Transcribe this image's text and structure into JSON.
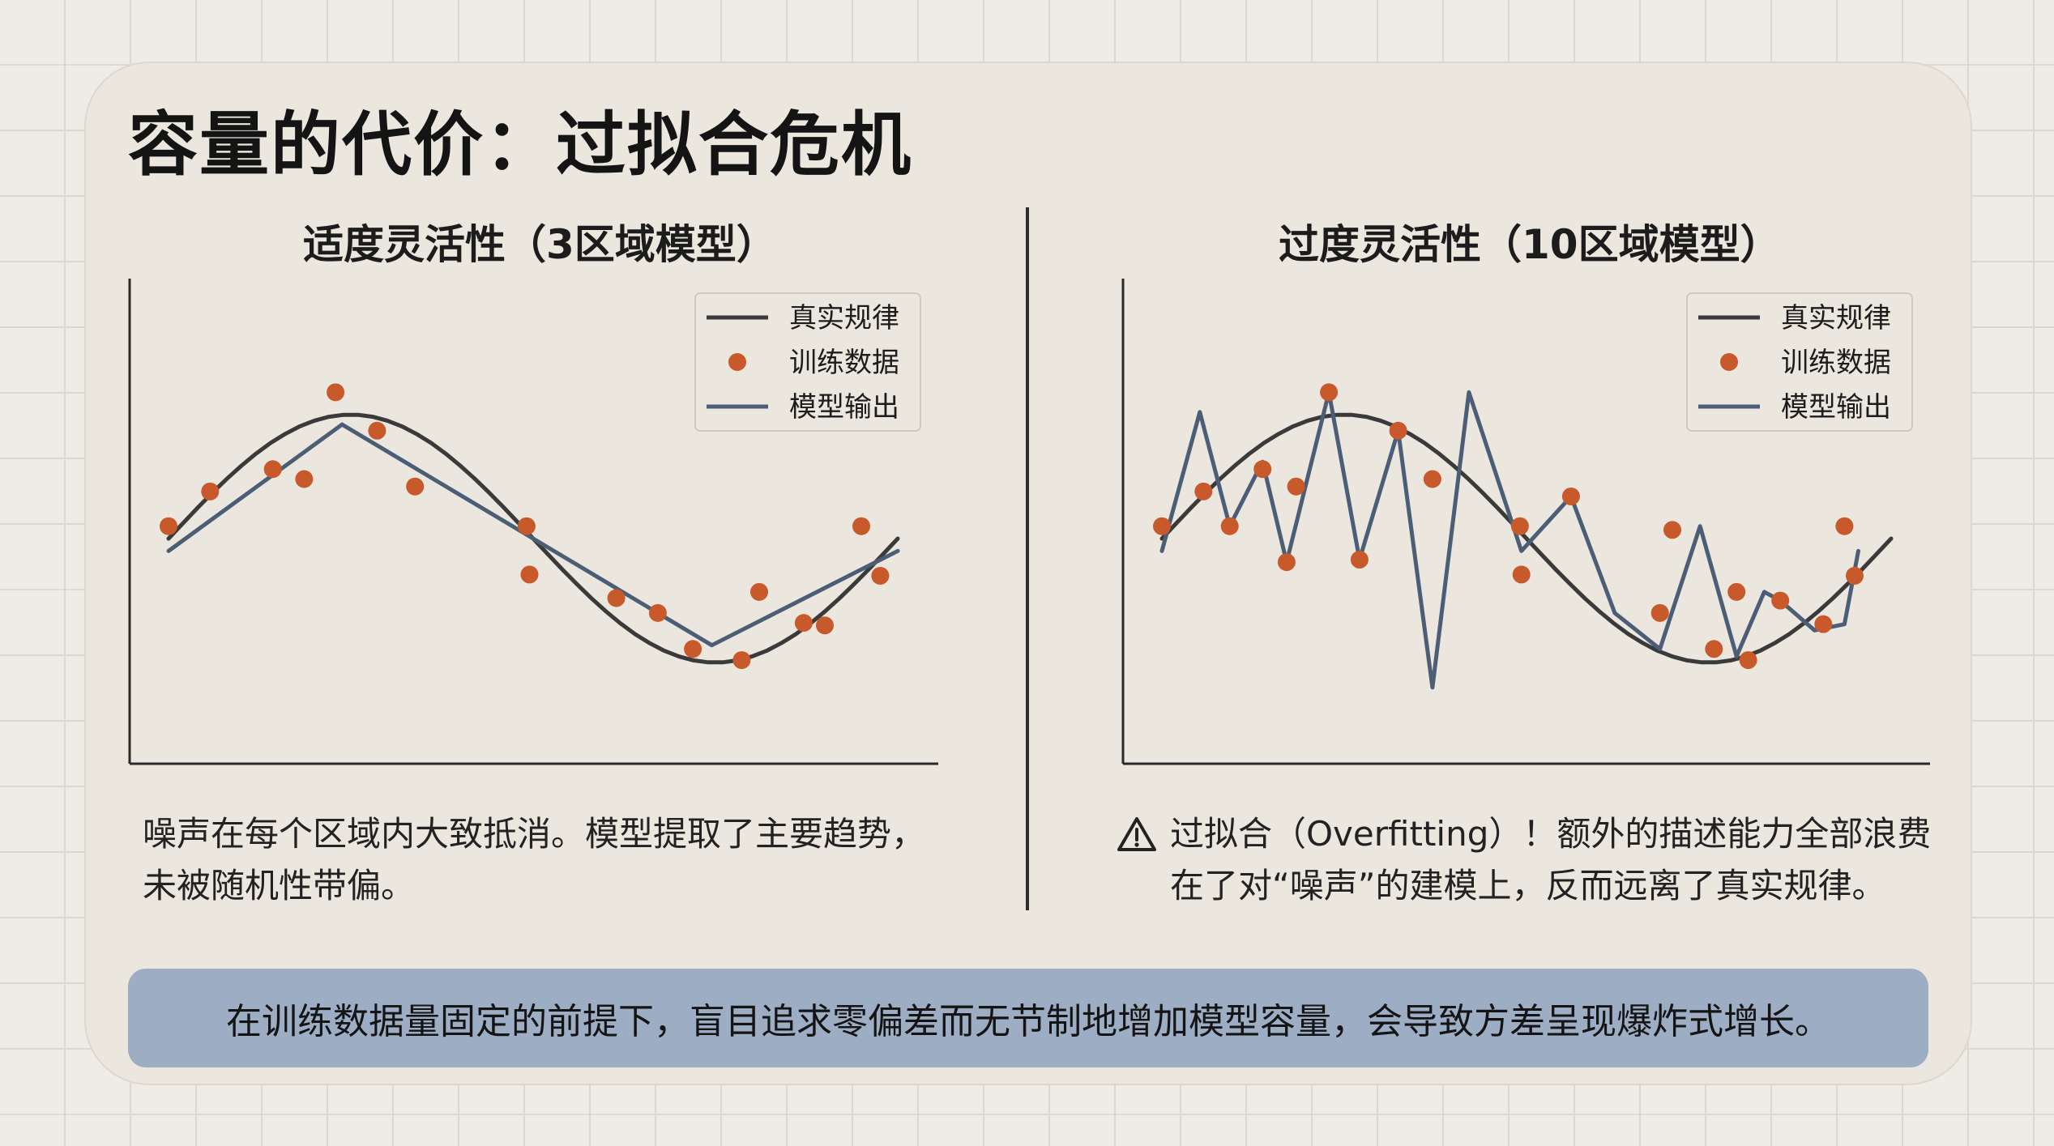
{
  "title": "容量的代价：过拟合危机",
  "colors": {
    "truth_line": "#3a3a3a",
    "data_points": "#c7592b",
    "model_line": "#4c5e76",
    "banner_bg": "#9cadc4"
  },
  "chart_data": [
    {
      "type": "line",
      "title": "适度灵活性（3区域模型）",
      "legend": {
        "placement": "top-right",
        "entries": [
          "真实规律",
          "训练数据",
          "模型输出"
        ]
      },
      "xlim": [
        0,
        1
      ],
      "ylim": [
        -1.6,
        1.6
      ],
      "grid": false,
      "series": [
        {
          "name": "真实规律",
          "style": "line",
          "x": [
            0.0,
            0.02,
            0.04,
            0.06,
            0.08,
            0.1,
            0.12,
            0.14,
            0.16,
            0.18,
            0.2,
            0.22,
            0.24,
            0.26,
            0.28,
            0.3,
            0.32,
            0.34,
            0.36,
            0.38,
            0.4,
            0.42,
            0.44,
            0.46,
            0.48,
            0.5,
            0.52,
            0.54,
            0.56,
            0.58,
            0.6,
            0.62,
            0.64,
            0.66,
            0.68,
            0.7,
            0.72,
            0.74,
            0.76,
            0.78,
            0.8,
            0.82,
            0.84,
            0.86,
            0.88,
            0.9,
            0.92,
            0.94,
            0.96,
            0.98,
            1.0
          ],
          "y": [
            0.0,
            0.125,
            0.249,
            0.368,
            0.482,
            0.588,
            0.685,
            0.771,
            0.844,
            0.905,
            0.951,
            0.982,
            0.998,
            0.998,
            0.982,
            0.951,
            0.905,
            0.844,
            0.771,
            0.685,
            0.588,
            0.482,
            0.368,
            0.249,
            0.125,
            0.0,
            -0.125,
            -0.249,
            -0.368,
            -0.482,
            -0.588,
            -0.685,
            -0.771,
            -0.844,
            -0.905,
            -0.951,
            -0.982,
            -0.998,
            -0.998,
            -0.982,
            -0.951,
            -0.905,
            -0.844,
            -0.771,
            -0.685,
            -0.588,
            -0.482,
            -0.368,
            -0.249,
            -0.125,
            0.0
          ]
        },
        {
          "name": "训练数据",
          "style": "scatter",
          "x": [
            0.0,
            0.057,
            0.143,
            0.229,
            0.186,
            0.286,
            0.338,
            0.491,
            0.495,
            0.614,
            0.719,
            0.671,
            0.786,
            0.81,
            0.871,
            0.95,
            0.9,
            0.976
          ],
          "y": [
            0.1,
            0.38,
            0.56,
            1.18,
            0.48,
            0.87,
            0.42,
            0.1,
            -0.29,
            -0.48,
            -0.89,
            -0.6,
            -0.98,
            -0.43,
            -0.68,
            0.1,
            -0.7,
            -0.3
          ]
        },
        {
          "name": "模型输出",
          "style": "line",
          "x": [
            0.0,
            0.238,
            0.745,
            1.0
          ],
          "y": [
            -0.1,
            0.92,
            -0.86,
            -0.1
          ]
        }
      ]
    },
    {
      "type": "line",
      "title": "过度灵活性（10区域模型）",
      "legend": {
        "placement": "top-right",
        "entries": [
          "真实规律",
          "训练数据",
          "模型输出"
        ]
      },
      "xlim": [
        0,
        1
      ],
      "ylim": [
        -1.6,
        1.6
      ],
      "grid": false,
      "series": [
        {
          "name": "真实规律",
          "style": "line",
          "x": [
            0.0,
            0.02,
            0.04,
            0.06,
            0.08,
            0.1,
            0.12,
            0.14,
            0.16,
            0.18,
            0.2,
            0.22,
            0.24,
            0.26,
            0.28,
            0.3,
            0.32,
            0.34,
            0.36,
            0.38,
            0.4,
            0.42,
            0.44,
            0.46,
            0.48,
            0.5,
            0.52,
            0.54,
            0.56,
            0.58,
            0.6,
            0.62,
            0.64,
            0.66,
            0.68,
            0.7,
            0.72,
            0.74,
            0.76,
            0.78,
            0.8,
            0.82,
            0.84,
            0.86,
            0.88,
            0.9,
            0.92,
            0.94,
            0.96,
            0.98,
            1.0
          ],
          "y": [
            0.0,
            0.125,
            0.249,
            0.368,
            0.482,
            0.588,
            0.685,
            0.771,
            0.844,
            0.905,
            0.951,
            0.982,
            0.998,
            0.998,
            0.982,
            0.951,
            0.905,
            0.844,
            0.771,
            0.685,
            0.588,
            0.482,
            0.368,
            0.249,
            0.125,
            0.0,
            -0.125,
            -0.249,
            -0.368,
            -0.482,
            -0.588,
            -0.685,
            -0.771,
            -0.844,
            -0.905,
            -0.951,
            -0.982,
            -0.998,
            -0.998,
            -0.982,
            -0.951,
            -0.905,
            -0.844,
            -0.771,
            -0.685,
            -0.588,
            -0.482,
            -0.368,
            -0.249,
            -0.125,
            0.0
          ]
        },
        {
          "name": "训练数据",
          "style": "scatter",
          "x": [
            0.0,
            0.057,
            0.093,
            0.138,
            0.171,
            0.184,
            0.229,
            0.271,
            0.324,
            0.371,
            0.491,
            0.493,
            0.561,
            0.7,
            0.683,
            0.757,
            0.804,
            0.788,
            0.848,
            0.936,
            0.907,
            0.95
          ],
          "y": [
            0.1,
            0.38,
            0.1,
            0.56,
            -0.19,
            0.42,
            1.18,
            -0.17,
            0.87,
            0.48,
            0.1,
            -0.29,
            0.34,
            0.07,
            -0.6,
            -0.89,
            -0.98,
            -0.43,
            -0.5,
            0.1,
            -0.69,
            -0.3
          ]
        },
        {
          "name": "模型输出",
          "style": "line",
          "x": [
            0.0,
            0.052,
            0.093,
            0.138,
            0.171,
            0.229,
            0.271,
            0.324,
            0.371,
            0.421,
            0.493,
            0.561,
            0.621,
            0.683,
            0.738,
            0.788,
            0.826,
            0.848,
            0.895,
            0.936,
            0.955
          ],
          "y": [
            -0.1,
            1.02,
            0.1,
            0.62,
            -0.19,
            1.18,
            -0.17,
            0.87,
            -1.2,
            1.18,
            -0.1,
            0.34,
            -0.6,
            -0.89,
            0.1,
            -0.95,
            -0.43,
            -0.5,
            -0.74,
            -0.69,
            -0.1
          ]
        }
      ]
    }
  ],
  "panels": [
    {
      "title": "适度灵活性（3区域模型）",
      "caption_lines": [
        "噪声在每个区域内大致抵消。模型提取了主要趋势，",
        "未被随机性带偏。"
      ]
    },
    {
      "title": "过度灵活性（10区域模型）",
      "caption_lines": [
        "过拟合（Overfitting）！额外的描述能力全部浪费",
        "在了对“噪声”的建模上，反而远离了真实规律。"
      ]
    }
  ],
  "banner": "在训练数据量固定的前提下，盲目追求零偏差而无节制地增加模型容量，会导致方差呈现爆炸式增长。"
}
